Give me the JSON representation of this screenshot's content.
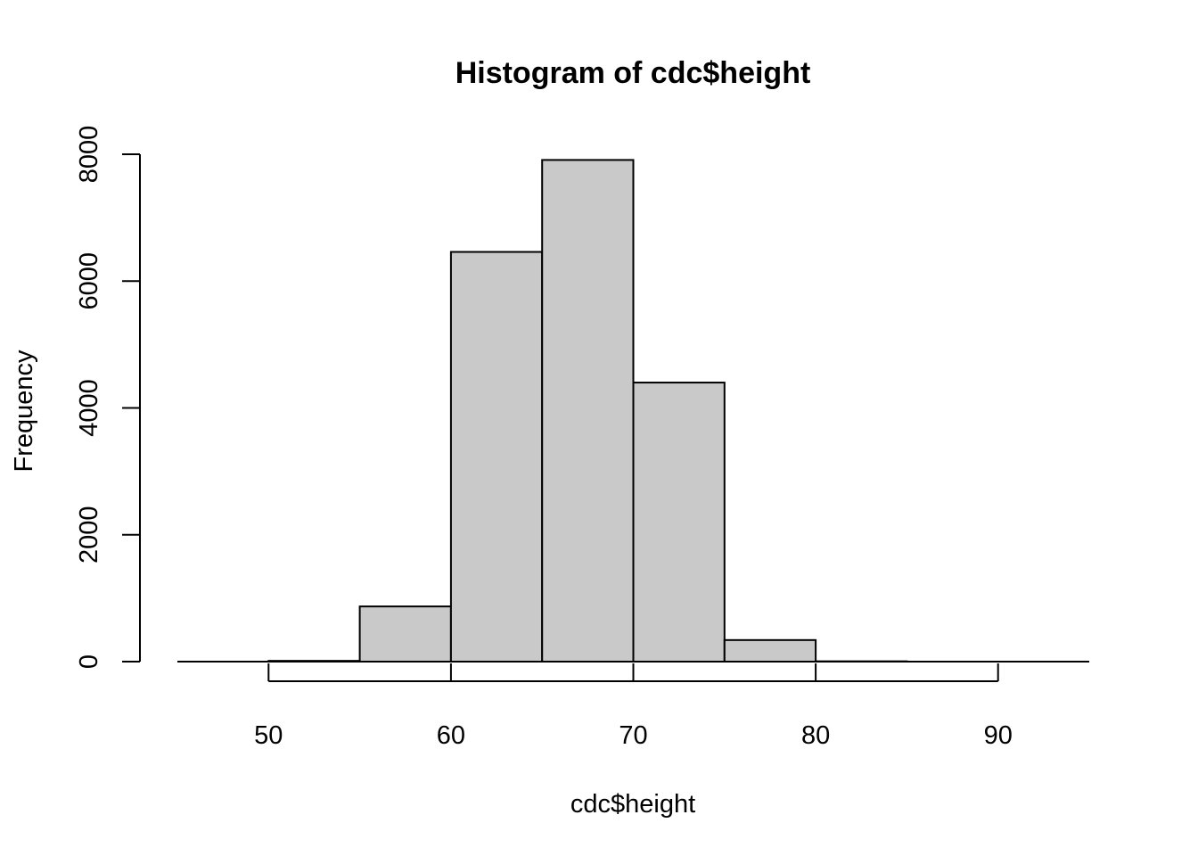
{
  "chart_data": {
    "type": "bar",
    "title": "Histogram of cdc$height",
    "xlabel": "cdc$height",
    "ylabel": "Frequency",
    "bins": [
      {
        "x0": 45,
        "x1": 50,
        "count": 0
      },
      {
        "x0": 50,
        "x1": 55,
        "count": 12
      },
      {
        "x0": 55,
        "x1": 60,
        "count": 870
      },
      {
        "x0": 60,
        "x1": 65,
        "count": 6460
      },
      {
        "x0": 65,
        "x1": 70,
        "count": 7910
      },
      {
        "x0": 70,
        "x1": 75,
        "count": 4400
      },
      {
        "x0": 75,
        "x1": 80,
        "count": 340
      },
      {
        "x0": 80,
        "x1": 85,
        "count": 5
      },
      {
        "x0": 85,
        "x1": 90,
        "count": 0
      },
      {
        "x0": 90,
        "x1": 95,
        "count": 0
      }
    ],
    "xticks": [
      50,
      60,
      70,
      80,
      90
    ],
    "yticks": [
      0,
      2000,
      4000,
      6000,
      8000
    ],
    "xlim": [
      45,
      95
    ],
    "ylim": [
      0,
      8000
    ],
    "bar_color": "#c9c9c9",
    "grid": false
  }
}
